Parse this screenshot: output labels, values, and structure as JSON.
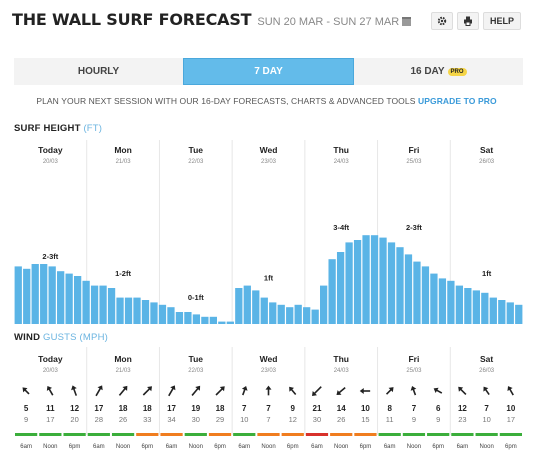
{
  "header": {
    "title": "THE WALL SURF FORECAST",
    "dates": "SUN 20 MAR - SUN 27 MAR",
    "help": "HELP"
  },
  "icons": {
    "settings": "gear-icon",
    "print": "printer-icon",
    "calendar": "calendar-icon"
  },
  "tabs": [
    {
      "label": "HOURLY"
    },
    {
      "label": "7 DAY",
      "active": true
    },
    {
      "label": "16 DAY",
      "badge": "PRO"
    }
  ],
  "promo": {
    "text": "PLAN YOUR NEXT SESSION WITH OUR 16-DAY FORECASTS, CHARTS & ADVANCED TOOLS",
    "link": "UPGRADE TO PRO"
  },
  "surf": {
    "title": "SURF HEIGHT",
    "unit": "(FT)"
  },
  "wind": {
    "title": "WIND",
    "unit": "GUSTS (MPH)"
  },
  "days": [
    {
      "name": "Today",
      "date": "20/03"
    },
    {
      "name": "Mon",
      "date": "21/03"
    },
    {
      "name": "Tue",
      "date": "22/03"
    },
    {
      "name": "Wed",
      "date": "23/03"
    },
    {
      "name": "Thu",
      "date": "24/03"
    },
    {
      "name": "Fri",
      "date": "25/03"
    },
    {
      "name": "Sat",
      "date": "26/03"
    }
  ],
  "colors": {
    "bar": "#5ab4e6",
    "green": "#3bae3b",
    "orange": "#f07d1f",
    "red": "#d8312b",
    "tab_active": "#63bbea"
  },
  "chart_data": {
    "type": "bar",
    "surf_labels": [
      "2-3ft",
      "1-2ft",
      "0-1ft",
      "1ft",
      "3-4ft",
      "2-3ft",
      "1ft"
    ],
    "surf_values": [
      2.4,
      2.3,
      2.5,
      2.5,
      2.4,
      2.2,
      2.1,
      2.0,
      1.8,
      1.6,
      1.6,
      1.5,
      1.1,
      1.1,
      1.1,
      1.0,
      0.9,
      0.8,
      0.7,
      0.5,
      0.5,
      0.4,
      0.3,
      0.3,
      0.1,
      0.1,
      1.5,
      1.6,
      1.4,
      1.1,
      0.9,
      0.8,
      0.7,
      0.8,
      0.7,
      0.6,
      1.6,
      2.7,
      3.0,
      3.4,
      3.5,
      3.7,
      3.7,
      3.6,
      3.4,
      3.2,
      2.9,
      2.6,
      2.4,
      2.1,
      1.9,
      1.8,
      1.6,
      1.5,
      1.4,
      1.3,
      1.1,
      1.0,
      0.9,
      0.8
    ],
    "wind_times": [
      "6am",
      "Noon",
      "6pm"
    ],
    "wind": [
      [
        {
          "w": 5,
          "g": 9,
          "d": 225,
          "c": "green"
        },
        {
          "w": 11,
          "g": 17,
          "d": 240,
          "c": "green"
        },
        {
          "w": 12,
          "g": 20,
          "d": 250,
          "c": "green"
        }
      ],
      [
        {
          "w": 17,
          "g": 28,
          "d": 300,
          "c": "green"
        },
        {
          "w": 18,
          "g": 26,
          "d": 310,
          "c": "green"
        },
        {
          "w": 18,
          "g": 33,
          "d": 315,
          "c": "orange"
        }
      ],
      [
        {
          "w": 17,
          "g": 34,
          "d": 300,
          "c": "orange"
        },
        {
          "w": 19,
          "g": 30,
          "d": 310,
          "c": "green"
        },
        {
          "w": 18,
          "g": 29,
          "d": 315,
          "c": "orange"
        }
      ],
      [
        {
          "w": 7,
          "g": 10,
          "d": 290,
          "c": "green"
        },
        {
          "w": 7,
          "g": 7,
          "d": 270,
          "c": "orange"
        },
        {
          "w": 9,
          "g": 12,
          "d": 230,
          "c": "orange"
        }
      ],
      [
        {
          "w": 21,
          "g": 30,
          "d": 135,
          "c": "red"
        },
        {
          "w": 14,
          "g": 26,
          "d": 140,
          "c": "orange"
        },
        {
          "w": 10,
          "g": 15,
          "d": 180,
          "c": "orange"
        }
      ],
      [
        {
          "w": 8,
          "g": 11,
          "d": 315,
          "c": "green"
        },
        {
          "w": 7,
          "g": 9,
          "d": 250,
          "c": "green"
        },
        {
          "w": 6,
          "g": 9,
          "d": 210,
          "c": "green"
        }
      ],
      [
        {
          "w": 12,
          "g": 23,
          "d": 225,
          "c": "green"
        },
        {
          "w": 7,
          "g": 10,
          "d": 235,
          "c": "green"
        },
        {
          "w": 10,
          "g": 17,
          "d": 240,
          "c": "green"
        }
      ]
    ]
  }
}
